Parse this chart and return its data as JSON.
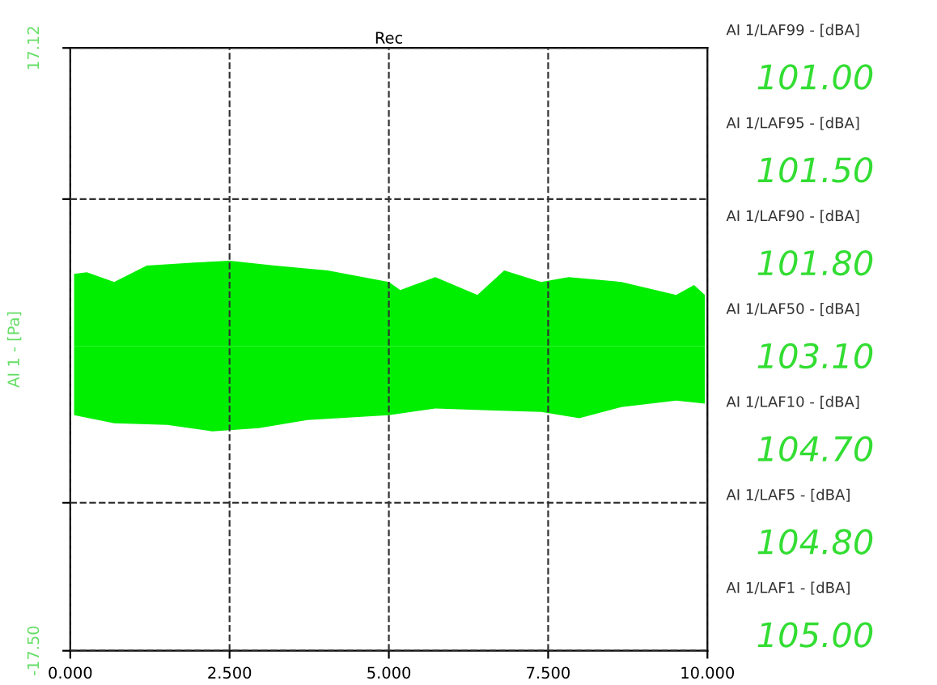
{
  "chart_data": {
    "type": "area",
    "title": "Rec",
    "ylabel": "AI 1 - [Pa]",
    "xlim": [
      0,
      10
    ],
    "ylim": [
      -17.5,
      17.12
    ],
    "xticks": [
      {
        "value": 0,
        "label": "0.000"
      },
      {
        "value": 2.5,
        "label": "2.500"
      },
      {
        "value": 5,
        "label": "5.000"
      },
      {
        "value": 7.5,
        "label": "7.500"
      },
      {
        "value": 10,
        "label": "10.000"
      }
    ],
    "yticks": [
      {
        "value": 17.12,
        "label": "17.12"
      },
      {
        "value": 8.44,
        "label": null
      },
      {
        "value": -9.0,
        "label": null
      },
      {
        "value": -17.5,
        "label": "-17.50"
      }
    ],
    "grid": true,
    "legend": false,
    "line_style": "dashed",
    "series": [
      {
        "color": "#00ee00",
        "x": [
          0.06,
          0.26,
          0.69,
          1.2,
          1.95,
          2.5,
          3.21,
          4.04,
          5.0,
          5.18,
          5.73,
          6.39,
          6.81,
          7.39,
          7.82,
          8.65,
          9.51,
          9.79,
          9.96
        ],
        "values": [
          4.15,
          4.24,
          3.68,
          4.62,
          4.8,
          4.9,
          4.62,
          4.34,
          3.68,
          3.22,
          3.96,
          2.94,
          4.34,
          3.68,
          3.96,
          3.68,
          2.94,
          3.5,
          2.94
        ]
      },
      {
        "color": "#00ee00",
        "x": [
          0.06,
          0.69,
          1.52,
          2.23,
          2.96,
          3.72,
          5.0,
          5.73,
          6.56,
          7.39,
          7.99,
          8.65,
          9.51,
          9.96
        ],
        "values": [
          -3.97,
          -4.43,
          -4.53,
          -4.9,
          -4.71,
          -4.25,
          -3.97,
          -3.59,
          -3.69,
          -3.78,
          -4.15,
          -3.5,
          -3.13,
          -3.31
        ]
      }
    ],
    "annotations": [
      "AI 1/LAF99 - [dBA]",
      "101.00",
      "AI 1/LAF95 - [dBA]",
      "101.50",
      "AI 1/LAF90 - [dBA]",
      "101.80",
      "AI 1/LAF50 - [dBA]",
      "103.10",
      "AI 1/LAF10 - [dBA]",
      "104.70",
      "AI 1/LAF5 - [dBA]",
      "104.80",
      "AI 1/LAF1 - [dBA]",
      "105.00"
    ]
  }
}
